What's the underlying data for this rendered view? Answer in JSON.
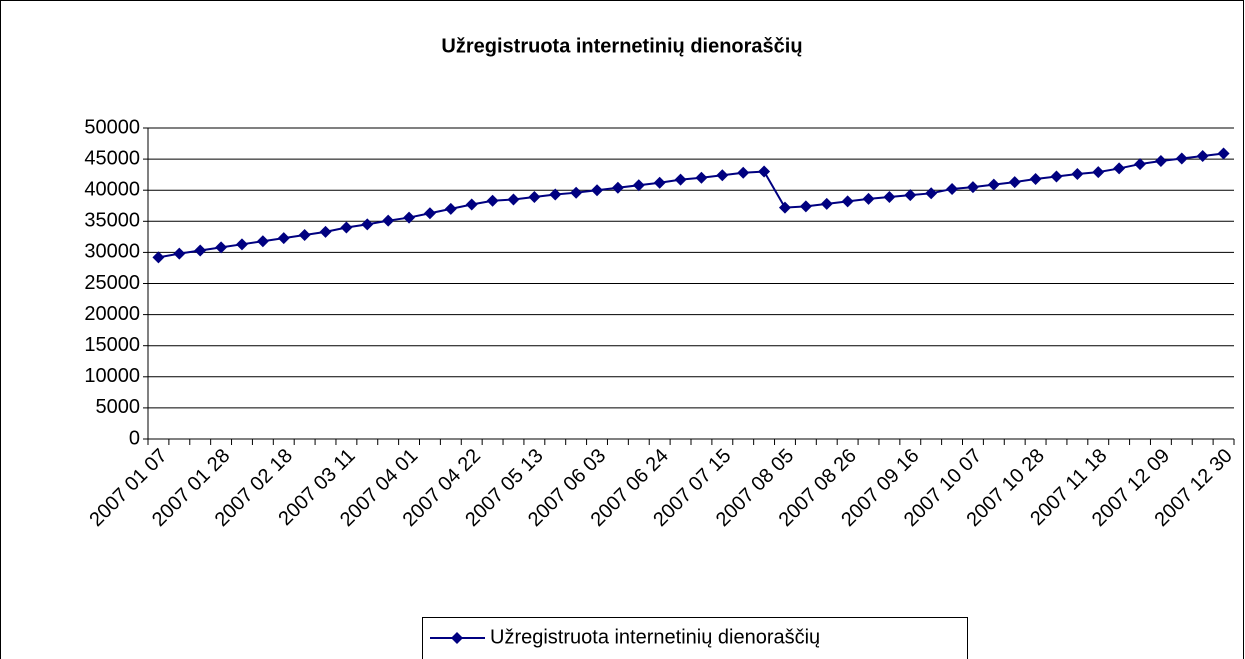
{
  "chart_data": {
    "type": "line",
    "title": "Užregistruota internetinių dienoraščių",
    "categories": [
      "2007 01 07",
      null,
      null,
      "2007 01 28",
      null,
      null,
      "2007 02 18",
      null,
      null,
      "2007 03 11",
      null,
      null,
      "2007 04 01",
      null,
      null,
      "2007 04 22",
      null,
      null,
      "2007 05 13",
      null,
      null,
      "2007 06 03",
      null,
      null,
      "2007 06 24",
      null,
      null,
      "2007 07 15",
      null,
      null,
      "2007 08 05",
      null,
      null,
      "2007 08 26",
      null,
      null,
      "2007 09 16",
      null,
      null,
      "2007 10 07",
      null,
      null,
      "2007 10 28",
      null,
      null,
      "2007 11 18",
      null,
      null,
      "2007 12 09",
      null,
      null,
      "2007 12 30"
    ],
    "series": [
      {
        "name": "Užregistruota internetinių dienoraščių",
        "color": "#000080",
        "values": [
          29200,
          29800,
          30300,
          30800,
          31300,
          31800,
          32300,
          32800,
          33300,
          34000,
          34500,
          35100,
          35600,
          36300,
          37000,
          37700,
          38300,
          38500,
          38900,
          39300,
          39600,
          40000,
          40400,
          40800,
          41200,
          41700,
          42000,
          42400,
          42800,
          43000,
          37200,
          37400,
          37800,
          38200,
          38600,
          38900,
          39200,
          39500,
          40200,
          40500,
          40900,
          41300,
          41800,
          42200,
          42600,
          42900,
          43500,
          44200,
          44700,
          45100,
          45500,
          45900
        ]
      }
    ],
    "ylim": [
      0,
      50000
    ],
    "yticks": [
      0,
      5000,
      10000,
      15000,
      20000,
      25000,
      30000,
      35000,
      40000,
      45000,
      50000
    ],
    "grid": true,
    "legend": "bottom"
  }
}
